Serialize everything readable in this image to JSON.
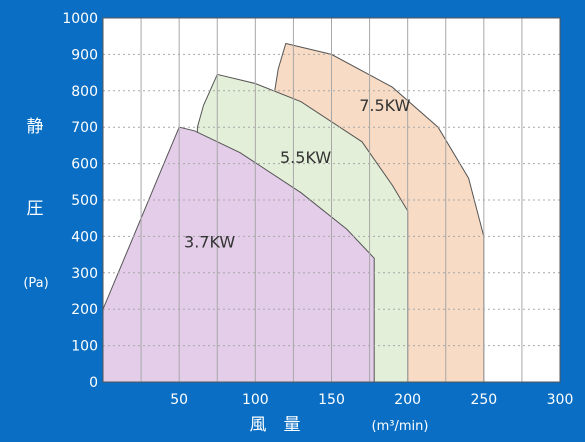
{
  "chart_data": {
    "type": "area",
    "xlabel": "風　量",
    "xunit": "(m³/min)",
    "ylabel_chars": [
      "静",
      "圧"
    ],
    "yunit": "(Pa)",
    "xlim": [
      0,
      300
    ],
    "ylim": [
      0,
      1000
    ],
    "x_ticks": [
      "50",
      "100",
      "150",
      "200",
      "250",
      "300"
    ],
    "y_ticks": [
      "0",
      "100",
      "200",
      "300",
      "400",
      "500",
      "600",
      "700",
      "800",
      "900",
      "1000"
    ],
    "grid": true,
    "series": [
      {
        "name": "3.7KW",
        "color": "#e3cde9",
        "points": [
          [
            0,
            200
          ],
          [
            20,
            400
          ],
          [
            40,
            600
          ],
          [
            50,
            700
          ],
          [
            60,
            690
          ],
          [
            90,
            630
          ],
          [
            130,
            520
          ],
          [
            160,
            420
          ],
          [
            178,
            340
          ],
          [
            178,
            0
          ]
        ]
      },
      {
        "name": "5.5KW",
        "color": "#e3efd8",
        "points": [
          [
            62,
            700
          ],
          [
            66,
            760
          ],
          [
            75,
            845
          ],
          [
            100,
            820
          ],
          [
            130,
            770
          ],
          [
            170,
            660
          ],
          [
            190,
            540
          ],
          [
            200,
            470
          ],
          [
            200,
            0
          ]
        ]
      },
      {
        "name": "7.5KW",
        "color": "#f7dbc4",
        "points": [
          [
            112,
            780
          ],
          [
            115,
            860
          ],
          [
            120,
            930
          ],
          [
            150,
            900
          ],
          [
            190,
            810
          ],
          [
            220,
            700
          ],
          [
            240,
            560
          ],
          [
            250,
            400
          ],
          [
            250,
            0
          ]
        ]
      }
    ]
  },
  "colors": {
    "background": "#0a6fc4",
    "plot_bg": "#ffffff",
    "text": "#ffffff",
    "grid": "#a8a8a8",
    "series_text": "#333333"
  }
}
